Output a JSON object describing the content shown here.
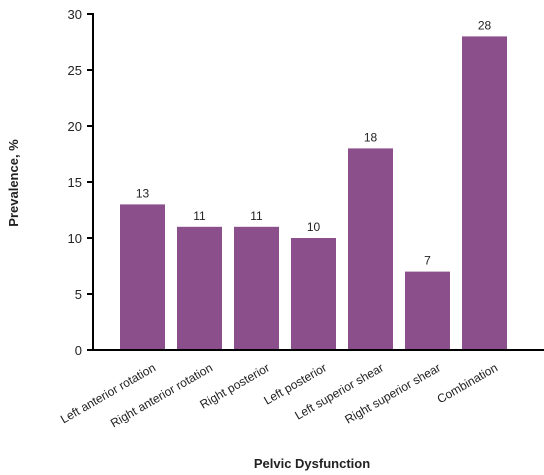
{
  "chart_data": {
    "type": "bar",
    "title": "",
    "xlabel": "Pelvic Dysfunction",
    "ylabel": "Prevalence, %",
    "categories": [
      "Left anterior rotation",
      "Right anterior rotation",
      "Right posterior",
      "Left posterior",
      "Left superior shear",
      "Right superior shear",
      "Combination"
    ],
    "values": [
      13,
      11,
      11,
      10,
      18,
      7,
      28
    ],
    "data_labels": [
      "13",
      "11",
      "11",
      "10",
      "18",
      "7",
      "28"
    ],
    "ylim": [
      0,
      30
    ],
    "yticks": [
      0,
      5,
      10,
      15,
      20,
      25,
      30
    ],
    "ytick_labels": [
      "0",
      "5",
      "10",
      "15",
      "20",
      "25",
      "30"
    ],
    "grid": false,
    "legend": "none",
    "bar_color": "#8B4F8C",
    "axis_color": "#000000"
  }
}
